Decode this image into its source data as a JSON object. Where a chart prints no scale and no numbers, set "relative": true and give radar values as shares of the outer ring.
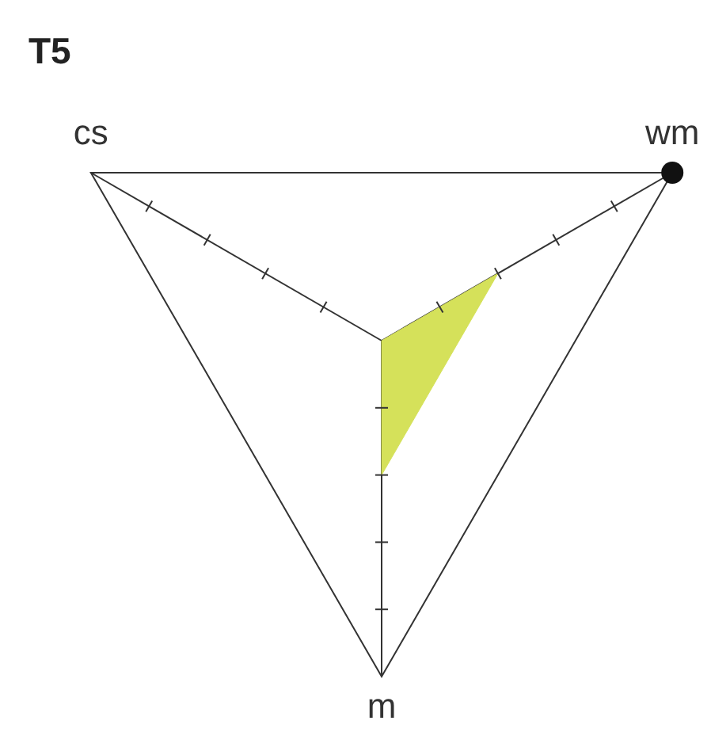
{
  "chart_data": {
    "type": "radar",
    "title": "T5",
    "categories": [
      "wm",
      "m",
      "cs"
    ],
    "series": [
      {
        "color": "#d5e15a",
        "values": [
          0.4,
          0.4,
          0
        ]
      }
    ],
    "relative": true,
    "grid": true
  }
}
